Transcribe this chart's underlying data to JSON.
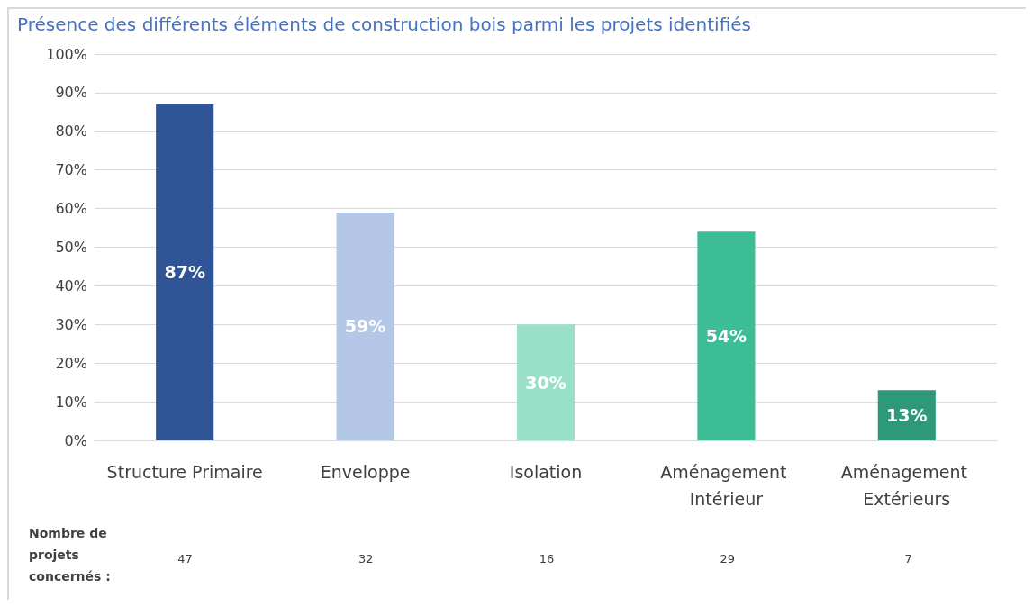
{
  "chart_data": {
    "type": "bar",
    "title": "Présence des différents éléments de construction bois parmi les projets identifiés",
    "categories": [
      "Structure Primaire",
      "Enveloppe",
      "Isolation",
      "Aménagement Intérieur",
      "Aménagement Extérieurs"
    ],
    "values": [
      87,
      59,
      30,
      54,
      13
    ],
    "colors": [
      "#2f5597",
      "#b4c7e7",
      "#9adfc8",
      "#3dbd96",
      "#2e9978"
    ],
    "value_labels": [
      "87%",
      "59%",
      "30%",
      "54%",
      "13%"
    ],
    "ylim": [
      0,
      100
    ],
    "yticks": [
      {
        "value": 0,
        "label": "0%"
      },
      {
        "value": 10,
        "label": "10%"
      },
      {
        "value": 20,
        "label": "20%"
      },
      {
        "value": 30,
        "label": "30%"
      },
      {
        "value": 40,
        "label": "40%"
      },
      {
        "value": 50,
        "label": "50%"
      },
      {
        "value": 60,
        "label": "60%"
      },
      {
        "value": 70,
        "label": "70%"
      },
      {
        "value": 80,
        "label": "80%"
      },
      {
        "value": 90,
        "label": "90%"
      },
      {
        "value": 100,
        "label": "100%"
      }
    ],
    "grid": true,
    "annotations": [
      "Nombre de projets concernés :",
      "47",
      "32",
      "16",
      "29",
      "7"
    ]
  }
}
